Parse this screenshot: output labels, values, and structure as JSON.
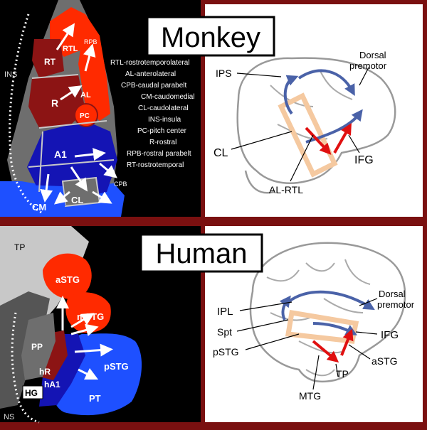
{
  "colors": {
    "frame": "#7a1010",
    "panel_dark": "#000000",
    "panel_light": "#ffffff",
    "red_region": "#ff2a00",
    "dark_red_region": "#8c1414",
    "blue_region": "#1414b4",
    "light_blue_region": "#1e50ff",
    "gray_region": "#6e6e6e",
    "light_gray": "#c8c8c8",
    "arrow_blue": "#4a62a8",
    "arrow_red": "#e01010",
    "highlight": "#f5c9a0"
  },
  "monkey": {
    "title": "Monkey",
    "regions": {
      "rtl": "RTL",
      "rpb": "RPB",
      "rt": "RT",
      "r": "R",
      "al": "AL",
      "pc": "PC",
      "ins": "INS",
      "a1": "A1",
      "cpb": "CPB",
      "cm": "CM",
      "cl": "CL"
    },
    "legend": [
      "RTL-rostrotemporolateral",
      "AL-anterolateral",
      "CPB-caudal parabelt",
      "CM-caudomedial",
      "CL-caudolateral",
      "INS-insula",
      "PC-pitch center",
      "R-rostral",
      "RPB-rostral parabelt",
      "RT-rostrotemporal"
    ],
    "brain_labels": {
      "ips": "IPS",
      "dorsal_premotor": [
        "Dorsal",
        "premotor"
      ],
      "cl": "CL",
      "ifg": "IFG",
      "al_rtl": "AL-RTL"
    }
  },
  "human": {
    "title": "Human",
    "regions": {
      "tp": "TP",
      "astg": "aSTG",
      "mstg": "mSTG",
      "pp": "PP",
      "hr": "hR",
      "ha1": "hA1",
      "hg": "HG",
      "pstg": "pSTG",
      "pt": "PT",
      "ns": "NS"
    },
    "brain_labels": {
      "ipl": "IPL",
      "spt": "Spt",
      "pstg": "pSTG",
      "mtg": "MTG",
      "dorsal_premotor": [
        "Dorsal",
        "premotor"
      ],
      "ifg": "IFG",
      "astg": "aSTG",
      "tp": "TP"
    }
  }
}
